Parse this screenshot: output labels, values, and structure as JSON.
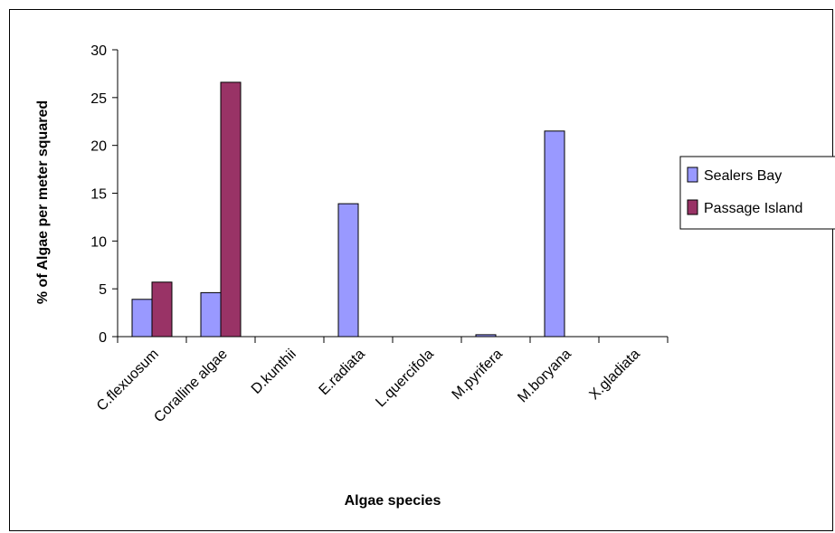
{
  "chart_data": {
    "type": "bar",
    "title": "",
    "xlabel": "Algae species",
    "ylabel": "% of Algae per meter squared",
    "categories": [
      "C.flexuosum",
      "Coralline algae",
      "D.kunthii",
      "E.radiata",
      "L.quercifola",
      "M.pyrifera",
      "M.boryana",
      "X.gladiata"
    ],
    "series": [
      {
        "name": "Sealers Bay",
        "color": "#9999ff",
        "values": [
          3.9,
          4.6,
          0,
          13.9,
          0,
          0.2,
          21.5,
          0
        ]
      },
      {
        "name": "Passage Island",
        "color": "#993366",
        "values": [
          5.7,
          26.6,
          0,
          0,
          0,
          0,
          0,
          0
        ]
      }
    ],
    "ylim": [
      0,
      30
    ],
    "yticks": [
      "0",
      "5",
      "10",
      "15",
      "20",
      "25",
      "30"
    ],
    "grid": false,
    "legend_position": "right"
  }
}
